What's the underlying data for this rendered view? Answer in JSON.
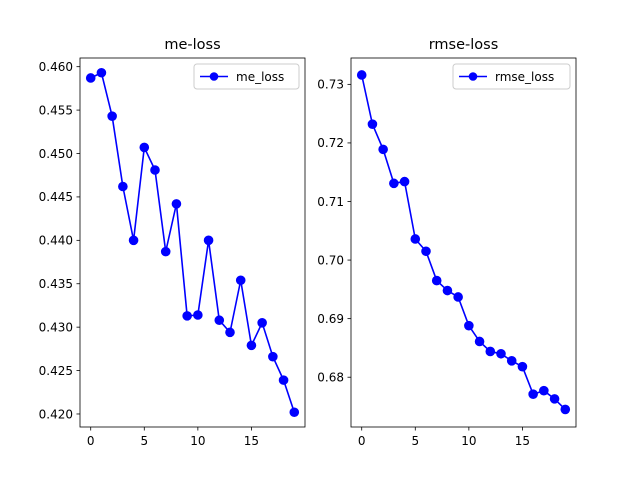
{
  "chart_data": [
    {
      "type": "line",
      "title": "me-loss",
      "xlabel": "",
      "ylabel": "",
      "x": [
        0,
        1,
        2,
        3,
        4,
        5,
        6,
        7,
        8,
        9,
        10,
        11,
        12,
        13,
        14,
        15,
        16,
        17,
        18,
        19
      ],
      "xlim": [
        -1,
        20
      ],
      "ylim": [
        0.4185,
        0.461
      ],
      "xticks": [
        0,
        5,
        10,
        15
      ],
      "xtick_labels": [
        "0",
        "5",
        "10",
        "15"
      ],
      "yticks": [
        0.42,
        0.425,
        0.43,
        0.435,
        0.44,
        0.445,
        0.45,
        0.455,
        0.46
      ],
      "ytick_labels": [
        "0.420",
        "0.425",
        "0.430",
        "0.435",
        "0.440",
        "0.445",
        "0.450",
        "0.455",
        "0.460"
      ],
      "grid": false,
      "legend_position": "top-right",
      "series": [
        {
          "name": "me_loss",
          "color": "#0000ff",
          "marker": "circle",
          "values": [
            0.4587,
            0.4593,
            0.4543,
            0.4462,
            0.44,
            0.4507,
            0.4481,
            0.4387,
            0.4442,
            0.4313,
            0.4314,
            0.44,
            0.4308,
            0.4294,
            0.4354,
            0.4279,
            0.4305,
            0.4266,
            0.4239,
            0.4202
          ]
        }
      ]
    },
    {
      "type": "line",
      "title": "rmse-loss",
      "xlabel": "",
      "ylabel": "",
      "x": [
        0,
        1,
        2,
        3,
        4,
        5,
        6,
        7,
        8,
        9,
        10,
        11,
        12,
        13,
        14,
        15,
        16,
        17,
        18,
        19
      ],
      "xlim": [
        -1,
        20
      ],
      "ylim": [
        0.6715,
        0.7345
      ],
      "xticks": [
        0,
        5,
        10,
        15
      ],
      "xtick_labels": [
        "0",
        "5",
        "10",
        "15"
      ],
      "yticks": [
        0.68,
        0.69,
        0.7,
        0.71,
        0.72,
        0.73
      ],
      "ytick_labels": [
        "0.68",
        "0.69",
        "0.70",
        "0.71",
        "0.72",
        "0.73"
      ],
      "grid": false,
      "legend_position": "top-right",
      "series": [
        {
          "name": "rmse_loss",
          "color": "#0000ff",
          "marker": "circle",
          "values": [
            0.7316,
            0.7232,
            0.7189,
            0.7131,
            0.7134,
            0.7036,
            0.7015,
            0.6965,
            0.6948,
            0.6937,
            0.6888,
            0.6861,
            0.6844,
            0.684,
            0.6828,
            0.6818,
            0.6771,
            0.6777,
            0.6763,
            0.6745
          ]
        }
      ]
    }
  ]
}
